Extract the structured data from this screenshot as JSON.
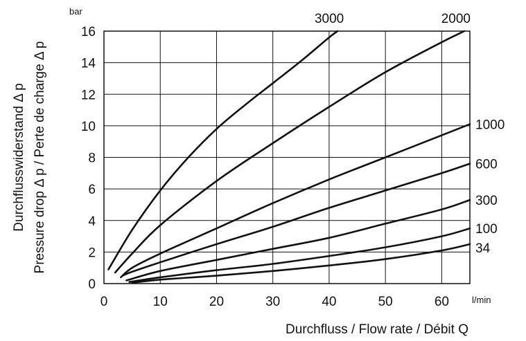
{
  "chart_data": {
    "type": "line",
    "y_unit": "bar",
    "x_unit": "l/min",
    "ylabel_lines": [
      "Durchflusswiderstand Δ p",
      "Pressure drop Δ p / Perte de charge Δ p"
    ],
    "xlabel": "Durchfluss / Flow rate / Débit Q",
    "xlim": [
      0,
      65
    ],
    "ylim": [
      0,
      16
    ],
    "x_ticks": [
      0,
      10,
      20,
      30,
      40,
      50,
      60
    ],
    "y_ticks": [
      0,
      2,
      4,
      6,
      8,
      10,
      12,
      14,
      16
    ],
    "grid": true,
    "series": [
      {
        "name": "3000",
        "points": [
          [
            0.8,
            0.9
          ],
          [
            5,
            3.4
          ],
          [
            10,
            5.9
          ],
          [
            15,
            8.0
          ],
          [
            20,
            9.8
          ],
          [
            25,
            11.3
          ],
          [
            30,
            12.7
          ],
          [
            35,
            14.1
          ],
          [
            40,
            15.6
          ],
          [
            41.5,
            16
          ]
        ]
      },
      {
        "name": "2000",
        "points": [
          [
            2,
            0.7
          ],
          [
            5,
            1.9
          ],
          [
            10,
            3.7
          ],
          [
            20,
            6.5
          ],
          [
            30,
            8.9
          ],
          [
            40,
            11.2
          ],
          [
            50,
            13.4
          ],
          [
            60,
            15.3
          ],
          [
            64,
            16
          ]
        ]
      },
      {
        "name": "1000",
        "points": [
          [
            3,
            0.4
          ],
          [
            5,
            1.0
          ],
          [
            10,
            1.9
          ],
          [
            20,
            3.5
          ],
          [
            30,
            5.1
          ],
          [
            40,
            6.6
          ],
          [
            50,
            8.0
          ],
          [
            60,
            9.4
          ],
          [
            65,
            10.1
          ]
        ]
      },
      {
        "name": "600",
        "points": [
          [
            3.3,
            0.5
          ],
          [
            5,
            0.75
          ],
          [
            10,
            1.35
          ],
          [
            20,
            2.5
          ],
          [
            30,
            3.6
          ],
          [
            40,
            4.8
          ],
          [
            50,
            5.9
          ],
          [
            60,
            7.0
          ],
          [
            65,
            7.6
          ]
        ]
      },
      {
        "name": "300",
        "points": [
          [
            4,
            0.2
          ],
          [
            10,
            0.8
          ],
          [
            20,
            1.5
          ],
          [
            30,
            2.2
          ],
          [
            40,
            2.9
          ],
          [
            50,
            3.8
          ],
          [
            60,
            4.7
          ],
          [
            65,
            5.3
          ]
        ]
      },
      {
        "name": "100",
        "points": [
          [
            4.5,
            0.1
          ],
          [
            10,
            0.4
          ],
          [
            20,
            0.85
          ],
          [
            30,
            1.25
          ],
          [
            40,
            1.75
          ],
          [
            50,
            2.3
          ],
          [
            60,
            3.0
          ],
          [
            65,
            3.5
          ]
        ]
      },
      {
        "name": "34",
        "points": [
          [
            5,
            0.05
          ],
          [
            10,
            0.25
          ],
          [
            20,
            0.5
          ],
          [
            30,
            0.8
          ],
          [
            40,
            1.15
          ],
          [
            50,
            1.55
          ],
          [
            60,
            2.1
          ],
          [
            65,
            2.5
          ]
        ]
      }
    ]
  }
}
